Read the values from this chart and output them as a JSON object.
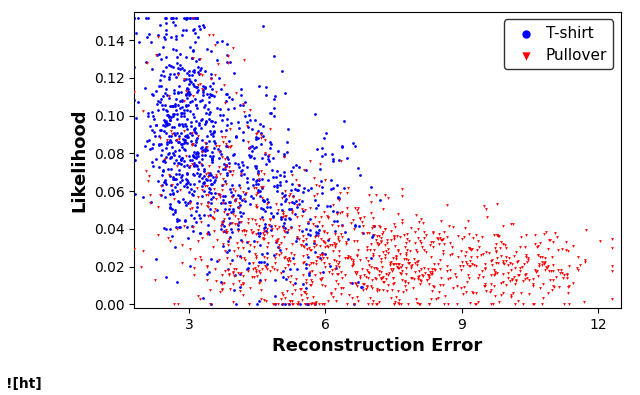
{
  "xlabel": "Reconstruction Error",
  "ylabel": "Likelihood",
  "xlim": [
    1.8,
    12.5
  ],
  "ylim": [
    -0.002,
    0.155
  ],
  "xticks": [
    3,
    6,
    9,
    12
  ],
  "yticks": [
    0.0,
    0.02,
    0.04,
    0.06,
    0.08,
    0.1,
    0.12,
    0.14
  ],
  "tshirt_color": "#0000FF",
  "pullover_color": "#FF0000",
  "legend_labels": [
    "T-shirt",
    "Pullover"
  ],
  "marker_size": 4,
  "seed": 12345,
  "n_tshirt": 1000,
  "n_pullover": 1200,
  "footer_text": "![ht]",
  "background_color": "#ffffff"
}
